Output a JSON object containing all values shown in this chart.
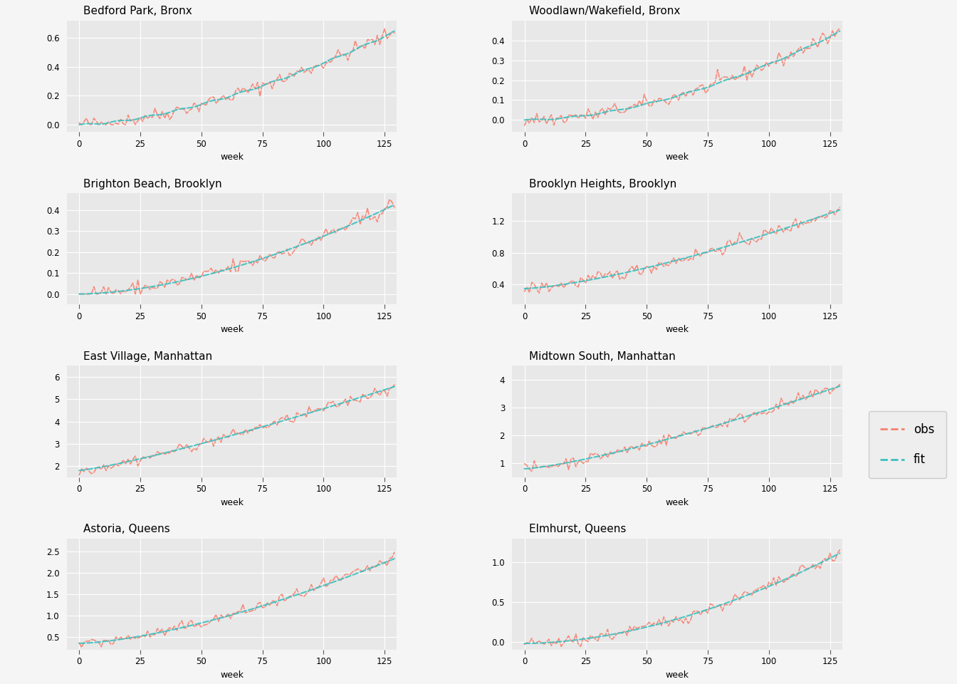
{
  "panels": [
    {
      "title": "Bedford Park, Bronx",
      "row": 0,
      "col": 0,
      "yticks": [
        0.0,
        0.2,
        0.4,
        0.6
      ],
      "ylim": [
        -0.05,
        0.72
      ]
    },
    {
      "title": "Woodlawn/Wakefield, Bronx",
      "row": 0,
      "col": 1,
      "yticks": [
        0.0,
        0.1,
        0.2,
        0.3,
        0.4
      ],
      "ylim": [
        -0.06,
        0.5
      ]
    },
    {
      "title": "Brighton Beach, Brooklyn",
      "row": 1,
      "col": 0,
      "yticks": [
        0.0,
        0.1,
        0.2,
        0.3,
        0.4
      ],
      "ylim": [
        -0.05,
        0.48
      ]
    },
    {
      "title": "Brooklyn Heights, Brooklyn",
      "row": 1,
      "col": 1,
      "yticks": [
        0.4,
        0.8,
        1.2
      ],
      "ylim": [
        0.15,
        1.55
      ]
    },
    {
      "title": "East Village, Manhattan",
      "row": 2,
      "col": 0,
      "yticks": [
        2,
        3,
        4,
        5,
        6
      ],
      "ylim": [
        1.5,
        6.5
      ]
    },
    {
      "title": "Midtown South, Manhattan",
      "row": 2,
      "col": 1,
      "yticks": [
        1,
        2,
        3,
        4
      ],
      "ylim": [
        0.5,
        4.5
      ]
    },
    {
      "title": "Astoria, Queens",
      "row": 3,
      "col": 0,
      "yticks": [
        0.5,
        1.0,
        1.5,
        2.0,
        2.5
      ],
      "ylim": [
        0.2,
        2.8
      ]
    },
    {
      "title": "Elmhurst, Queens",
      "row": 3,
      "col": 1,
      "yticks": [
        0.0,
        0.5,
        1.0
      ],
      "ylim": [
        -0.1,
        1.3
      ]
    }
  ],
  "obs_color": "#f87f6f",
  "fit_color": "#3dbfbf",
  "bg_color": "#e8e8e8",
  "grid_color": "#ffffff",
  "xlabel": "week",
  "xticks": [
    0,
    25,
    50,
    75,
    100,
    125
  ],
  "xlim": [
    -5,
    130
  ],
  "n_weeks": 130
}
